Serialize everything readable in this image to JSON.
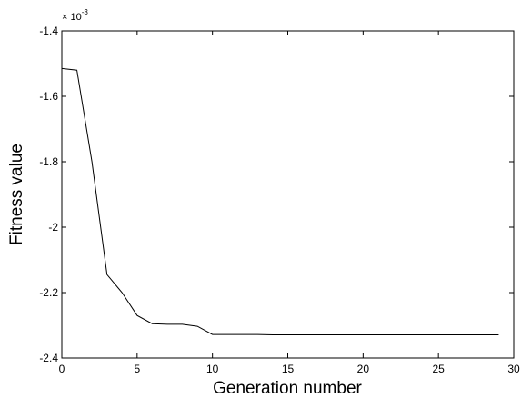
{
  "chart_data": {
    "type": "line",
    "title": "",
    "xlabel": "Generation number",
    "ylabel": "Fitness value",
    "y_multiplier": "× 10",
    "y_multiplier_exponent": "-3",
    "xlim": [
      0,
      30
    ],
    "ylim": [
      -2.4,
      -1.4
    ],
    "x_ticks": [
      0,
      5,
      10,
      15,
      20,
      25,
      30
    ],
    "x_tick_labels": [
      "0",
      "5",
      "10",
      "15",
      "20",
      "25",
      "30"
    ],
    "y_ticks": [
      -2.4,
      -2.2,
      -2.0,
      -1.8,
      -1.6,
      -1.4
    ],
    "y_tick_labels": [
      "-2.4",
      "-2.2",
      "-2",
      "-1.8",
      "-1.6",
      "-1.4"
    ],
    "grid": false,
    "legend": "none",
    "line_color": "#000000",
    "series": [
      {
        "x": [
          0,
          1,
          2,
          3,
          4,
          5,
          6,
          7,
          8,
          9,
          10,
          11,
          12,
          13,
          14,
          15,
          16,
          17,
          18,
          19,
          20,
          21,
          22,
          23,
          24,
          25,
          26,
          27,
          28,
          29
        ],
        "values": [
          -1.515,
          -1.52,
          -1.8,
          -2.145,
          -2.2,
          -2.27,
          -2.295,
          -2.297,
          -2.297,
          -2.303,
          -2.328,
          -2.328,
          -2.328,
          -2.328,
          -2.329,
          -2.329,
          -2.329,
          -2.329,
          -2.329,
          -2.329,
          -2.329,
          -2.329,
          -2.329,
          -2.329,
          -2.329,
          -2.329,
          -2.329,
          -2.329,
          -2.329,
          -2.329
        ]
      }
    ]
  }
}
